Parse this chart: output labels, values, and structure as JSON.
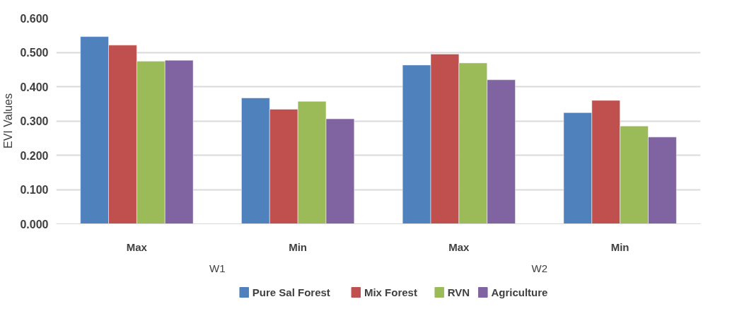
{
  "chart_data": {
    "type": "bar",
    "ylabel": "EVI Values",
    "categories": [
      "Max",
      "Min",
      "Max",
      "Min"
    ],
    "annotations": [
      "W1",
      "W2"
    ],
    "series": [
      {
        "name": "Pure Sal Forest",
        "color": "#4f81bd",
        "values": [
          0.546,
          0.367,
          0.463,
          0.324
        ]
      },
      {
        "name": "Mix Forest",
        "color": "#c0504d",
        "values": [
          0.521,
          0.334,
          0.495,
          0.36
        ]
      },
      {
        "name": "RVN",
        "color": "#9bbb59",
        "values": [
          0.474,
          0.357,
          0.469,
          0.285
        ]
      },
      {
        "name": "Agriculture",
        "color": "#8064a2",
        "values": [
          0.477,
          0.306,
          0.42,
          0.253
        ]
      }
    ],
    "ylim": [
      0,
      0.6
    ],
    "yticks": [
      {
        "value": 0,
        "label": "0.000"
      },
      {
        "value": 0.1,
        "label": "0.100"
      },
      {
        "value": 0.2,
        "label": "0.200"
      },
      {
        "value": 0.3,
        "label": "0.300"
      },
      {
        "value": 0.4,
        "label": "0.400"
      },
      {
        "value": 0.5,
        "label": "0.500"
      },
      {
        "value": 0.6,
        "label": "0.600"
      }
    ],
    "grid": "y",
    "legend": "bottom"
  }
}
